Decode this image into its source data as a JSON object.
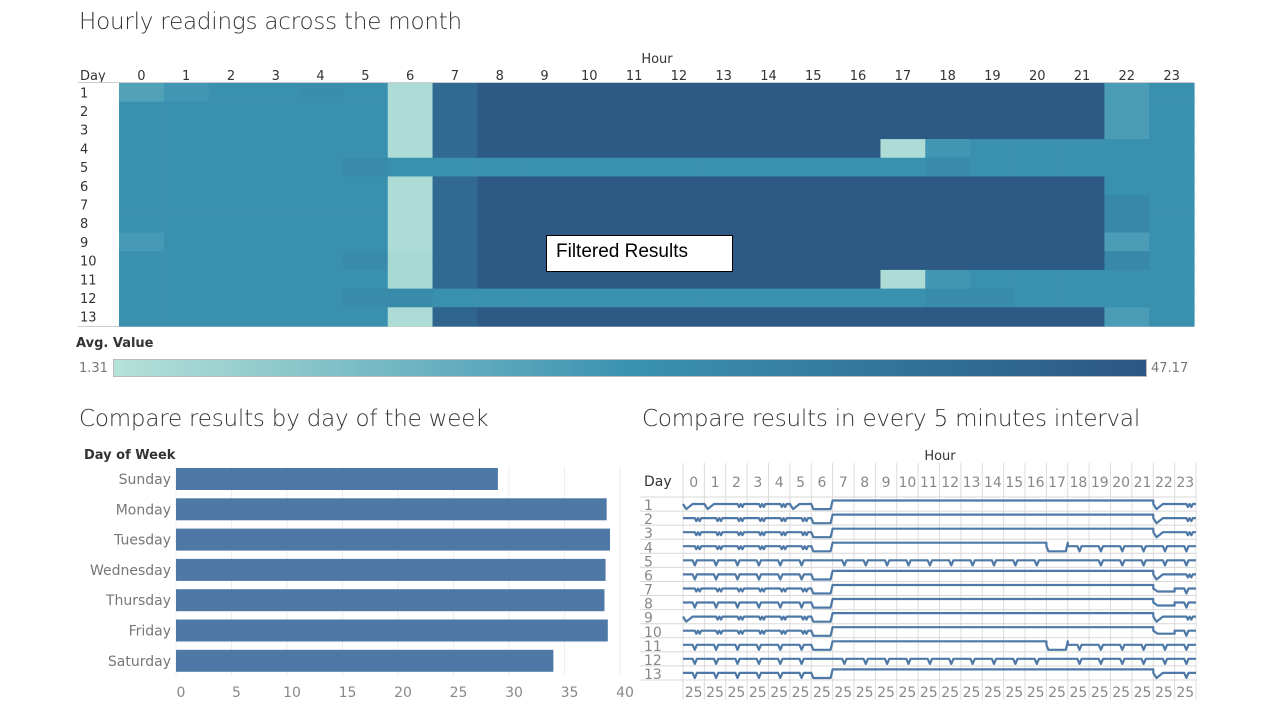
{
  "titles": {
    "heatmap": "Hourly readings across the month",
    "weekday": "Compare results by day of the week",
    "interval": "Compare results in every 5 minutes interval"
  },
  "overlay_label": "Filtered Results",
  "colors": {
    "low": "#b5e2d8",
    "mid": "#3a92b1",
    "high": "#2b5783",
    "bar": "#4e79a7",
    "line": "#4e79a7"
  },
  "chart_data": [
    {
      "type": "heatmap",
      "title": "Hourly readings across the month",
      "xlabel": "Hour",
      "ylabel": "Day",
      "x": [
        "0",
        "1",
        "2",
        "3",
        "4",
        "5",
        "6",
        "7",
        "8",
        "9",
        "10",
        "11",
        "12",
        "13",
        "14",
        "15",
        "16",
        "17",
        "18",
        "19",
        "20",
        "21",
        "22",
        "23"
      ],
      "y": [
        "1",
        "2",
        "3",
        "4",
        "5",
        "6",
        "7",
        "8",
        "9",
        "10",
        "11",
        "12",
        "13"
      ],
      "color_legend": {
        "title": "Avg. Value",
        "min": 1.31,
        "max": 47.17,
        "min_label": "1.31",
        "max_label": "47.17"
      },
      "values": [
        [
          20,
          23,
          25,
          25,
          26,
          25,
          3,
          40,
          46,
          46,
          46,
          46,
          46,
          46,
          46,
          46,
          46,
          46,
          46,
          46,
          46,
          46,
          21,
          25
        ],
        [
          25,
          25,
          25,
          25,
          25,
          25,
          3,
          40,
          46,
          46,
          46,
          46,
          46,
          46,
          46,
          46,
          46,
          46,
          46,
          46,
          46,
          46,
          21,
          25
        ],
        [
          25,
          25,
          25,
          25,
          25,
          25,
          3,
          40,
          46,
          46,
          46,
          46,
          46,
          46,
          46,
          46,
          46,
          46,
          46,
          46,
          46,
          46,
          21,
          25
        ],
        [
          25,
          25,
          25,
          25,
          25,
          25,
          3,
          40,
          46,
          46,
          46,
          46,
          46,
          46,
          46,
          46,
          46,
          3,
          23,
          25,
          25,
          25,
          25,
          25
        ],
        [
          25,
          25,
          25,
          25,
          25,
          27,
          25,
          25,
          25,
          25,
          25,
          25,
          25,
          25,
          25,
          25,
          25,
          25,
          27,
          25,
          25,
          25,
          25,
          25
        ],
        [
          25,
          25,
          25,
          25,
          25,
          25,
          3,
          40,
          46,
          46,
          46,
          46,
          46,
          46,
          46,
          46,
          46,
          46,
          46,
          46,
          46,
          46,
          25,
          25
        ],
        [
          25,
          25,
          25,
          25,
          25,
          25,
          3,
          40,
          46,
          46,
          46,
          46,
          46,
          46,
          46,
          46,
          46,
          46,
          46,
          46,
          46,
          46,
          28,
          25
        ],
        [
          25,
          25,
          25,
          25,
          25,
          25,
          3,
          40,
          46,
          46,
          46,
          46,
          46,
          46,
          46,
          46,
          46,
          46,
          46,
          46,
          46,
          46,
          28,
          25
        ],
        [
          22,
          25,
          25,
          25,
          25,
          25,
          3,
          40,
          46,
          46,
          46,
          46,
          46,
          46,
          46,
          46,
          46,
          46,
          46,
          46,
          46,
          46,
          21,
          25
        ],
        [
          25,
          25,
          25,
          25,
          25,
          27,
          4,
          40,
          46,
          46,
          46,
          46,
          46,
          46,
          46,
          46,
          46,
          46,
          46,
          46,
          46,
          46,
          28,
          25
        ],
        [
          25,
          25,
          25,
          25,
          25,
          25,
          4,
          40,
          46,
          46,
          46,
          46,
          46,
          46,
          46,
          46,
          46,
          3,
          23,
          25,
          25,
          25,
          25,
          25
        ],
        [
          25,
          25,
          25,
          25,
          25,
          27,
          27,
          25,
          25,
          25,
          25,
          25,
          25,
          25,
          25,
          25,
          25,
          25,
          27,
          27,
          25,
          25,
          25,
          25
        ],
        [
          25,
          25,
          25,
          25,
          25,
          25,
          3,
          42,
          46,
          46,
          46,
          46,
          46,
          46,
          46,
          46,
          46,
          46,
          46,
          46,
          46,
          46,
          21,
          25
        ]
      ]
    },
    {
      "type": "bar",
      "orientation": "horizontal",
      "title": "Compare results by day of the week",
      "ylabel": "Day of Week",
      "xlabel": "",
      "categories": [
        "Sunday",
        "Monday",
        "Tuesday",
        "Wednesday",
        "Thursday",
        "Friday",
        "Saturday"
      ],
      "values": [
        29.0,
        38.8,
        39.1,
        38.7,
        38.6,
        38.9,
        34.0
      ],
      "xlim": [
        0,
        40
      ],
      "xticks": [
        "0",
        "5",
        "10",
        "15",
        "20",
        "25",
        "30",
        "35",
        "40"
      ],
      "grid": true
    },
    {
      "type": "line",
      "title": "Compare results in every 5 minutes interval",
      "xlabel": "Hour",
      "ylabel": "Day",
      "columns": [
        "0",
        "1",
        "2",
        "3",
        "4",
        "5",
        "6",
        "7",
        "8",
        "9",
        "10",
        "11",
        "12",
        "13",
        "14",
        "15",
        "16",
        "17",
        "18",
        "19",
        "20",
        "21",
        "22",
        "23"
      ],
      "rows": [
        "1",
        "2",
        "3",
        "4",
        "5",
        "6",
        "7",
        "8",
        "9",
        "10",
        "11",
        "12",
        "13"
      ],
      "bottom_axis_label": "25",
      "row_patterns": [
        [
          "dip",
          "dip",
          "w",
          "w",
          "w",
          "dip",
          "low",
          "high",
          "high",
          "high",
          "high",
          "high",
          "high",
          "high",
          "high",
          "high",
          "high",
          "high",
          "high",
          "high",
          "high",
          "high",
          "dip",
          "w"
        ],
        [
          "w",
          "w",
          "w",
          "w",
          "w",
          "w",
          "low",
          "high",
          "high",
          "high",
          "high",
          "high",
          "high",
          "high",
          "high",
          "high",
          "high",
          "high",
          "high",
          "high",
          "high",
          "high",
          "dip",
          "w"
        ],
        [
          "w",
          "w",
          "w",
          "w",
          "w",
          "w",
          "low",
          "high",
          "high",
          "high",
          "high",
          "high",
          "high",
          "high",
          "high",
          "high",
          "high",
          "high",
          "high",
          "high",
          "high",
          "high",
          "dip",
          "w"
        ],
        [
          "w",
          "w",
          "w",
          "w",
          "w",
          "w",
          "low",
          "high",
          "high",
          "high",
          "high",
          "high",
          "high",
          "high",
          "high",
          "high",
          "high",
          "low",
          "v",
          "v",
          "v",
          "v",
          "v",
          "v"
        ],
        [
          "v",
          "v",
          "v",
          "v",
          "v",
          "v",
          "mid",
          "v",
          "v",
          "v",
          "v",
          "v",
          "v",
          "v",
          "v",
          "v",
          "v",
          "mid",
          "mid",
          "v",
          "v",
          "v",
          "v",
          "v"
        ],
        [
          "v",
          "v",
          "v",
          "v",
          "v",
          "v",
          "low",
          "high",
          "high",
          "high",
          "high",
          "high",
          "high",
          "high",
          "high",
          "high",
          "high",
          "high",
          "high",
          "high",
          "high",
          "high",
          "dip",
          "w"
        ],
        [
          "w",
          "w",
          "w",
          "w",
          "w",
          "w",
          "low",
          "high",
          "high",
          "high",
          "high",
          "high",
          "high",
          "high",
          "high",
          "high",
          "high",
          "high",
          "high",
          "high",
          "high",
          "high",
          "step",
          "v"
        ],
        [
          "v",
          "v",
          "v",
          "v",
          "v",
          "v",
          "low",
          "high",
          "high",
          "high",
          "high",
          "high",
          "high",
          "high",
          "high",
          "high",
          "high",
          "high",
          "high",
          "high",
          "high",
          "high",
          "step",
          "v"
        ],
        [
          "dip",
          "w",
          "w",
          "w",
          "w",
          "w",
          "low",
          "high",
          "high",
          "high",
          "high",
          "high",
          "high",
          "high",
          "high",
          "high",
          "high",
          "high",
          "high",
          "high",
          "high",
          "high",
          "dip",
          "w"
        ],
        [
          "w",
          "w",
          "w",
          "w",
          "w",
          "w",
          "low",
          "high",
          "high",
          "high",
          "high",
          "high",
          "high",
          "high",
          "high",
          "high",
          "high",
          "high",
          "high",
          "high",
          "high",
          "high",
          "step",
          "v"
        ],
        [
          "v",
          "v",
          "v",
          "v",
          "v",
          "v",
          "low",
          "high",
          "high",
          "high",
          "high",
          "high",
          "high",
          "high",
          "high",
          "high",
          "high",
          "low",
          "v",
          "v",
          "v",
          "v",
          "v",
          "v"
        ],
        [
          "v",
          "v",
          "v",
          "v",
          "v",
          "v",
          "mid",
          "v",
          "v",
          "v",
          "v",
          "v",
          "v",
          "v",
          "v",
          "v",
          "v",
          "mid",
          "v",
          "v",
          "v",
          "v",
          "v",
          "v"
        ],
        [
          "v",
          "v",
          "v",
          "v",
          "v",
          "v",
          "low",
          "high",
          "high",
          "high",
          "high",
          "high",
          "high",
          "high",
          "high",
          "high",
          "high",
          "high",
          "high",
          "high",
          "high",
          "high",
          "dip",
          "v"
        ]
      ]
    }
  ]
}
